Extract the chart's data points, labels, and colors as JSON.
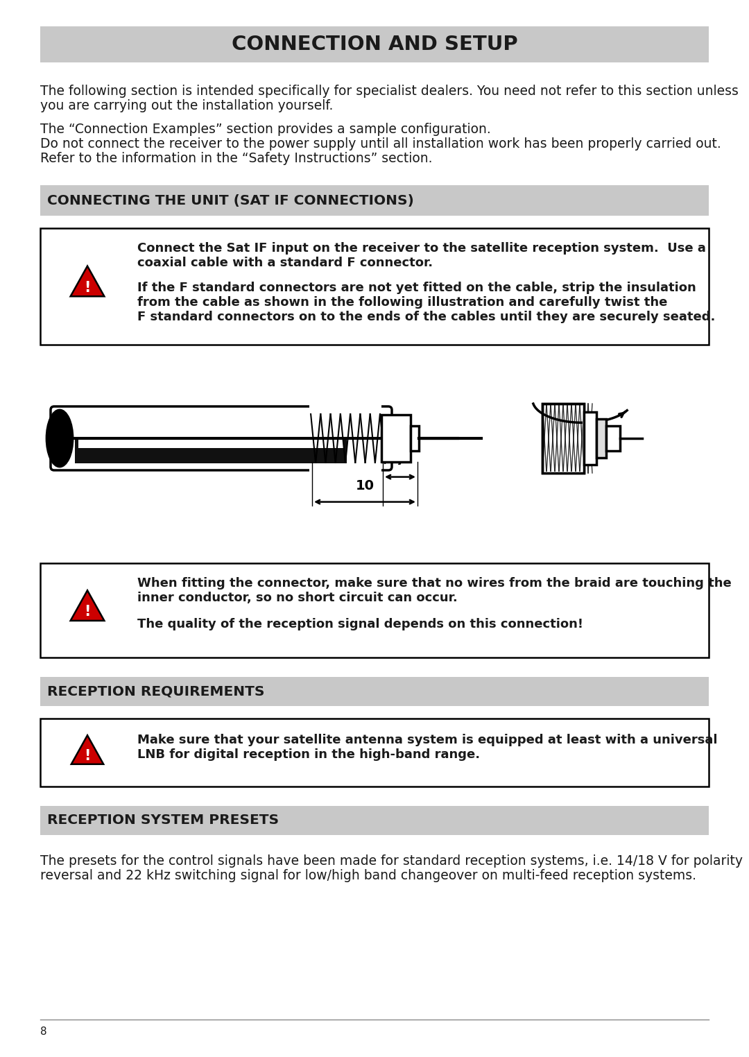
{
  "page_bg": "#ffffff",
  "header_bg": "#c8c8c8",
  "section_bg": "#c8c8c8",
  "border_color": "#000000",
  "text_color": "#1a1a1a",
  "title": "CONNECTION AND SETUP",
  "para1_line1": "The following section is intended specifically for specialist dealers. You need not refer to this section unless",
  "para1_line2": "you are carrying out the installation yourself.",
  "para2_line1": "The “Connection Examples” section provides a sample configuration.",
  "para2_line2": "Do not connect the receiver to the power supply until all installation work has been properly carried out.",
  "para2_line3": "Refer to the information in the “Safety Instructions” section.",
  "section1_title": "CONNECTING THE UNIT (SAT IF CONNECTIONS)",
  "w1_l1": "Connect the Sat IF input on the receiver to the satellite reception system.  Use a",
  "w1_l2": "coaxial cable with a standard F connector.",
  "w1_l3": "If the F standard connectors are not yet fitted on the cable, strip the insulation",
  "w1_l4": "from the cable as shown in the following illustration and carefully twist the",
  "w1_l5": "F standard connectors on to the ends of the cables until they are securely seated.",
  "w2_l1": "When fitting the connector, make sure that no wires from the braid are touching the",
  "w2_l2": "inner conductor, so no short circuit can occur.",
  "w2_l3": "The quality of the reception signal depends on this connection!",
  "section2_title": "RECEPTION REQUIREMENTS",
  "w3_l1": "Make sure that your satellite antenna system is equipped at least with a universal",
  "w3_l2": "LNB for digital reception in the high-band range.",
  "section3_title": "RECEPTION SYSTEM PRESETS",
  "para3_line1": "The presets for the control signals have been made for standard reception systems, i.e. 14/18 V for polarity",
  "para3_line2": "reversal and 22 kHz switching signal for low/high band changeover on multi-feed reception systems.",
  "page_number": "8",
  "warn_fill": "#cc0000",
  "warn_stroke": "#000000"
}
